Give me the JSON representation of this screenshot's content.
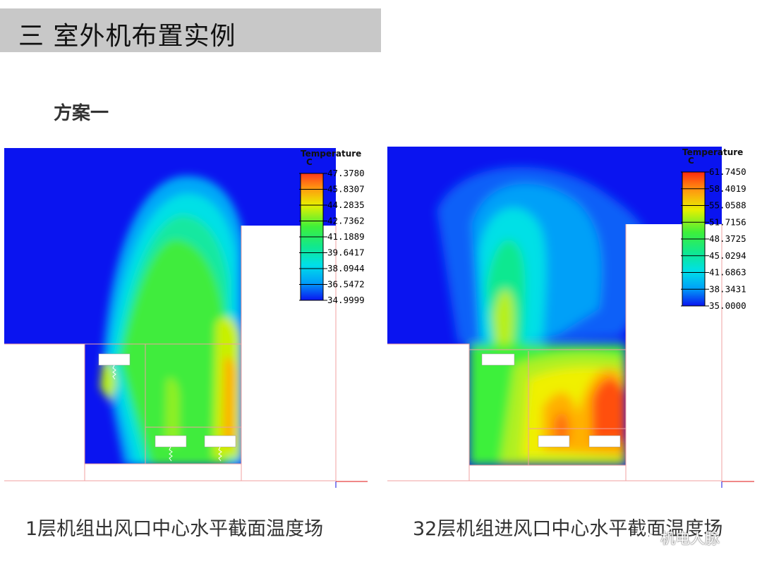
{
  "header": {
    "title": "三  室外机布置实例"
  },
  "scheme_title": "方案一",
  "panels": [
    {
      "legend": {
        "title": "Temperature",
        "unit": "C",
        "values": [
          "47.3780",
          "45.8307",
          "44.2835",
          "42.7362",
          "41.1889",
          "39.6417",
          "38.0944",
          "36.5472",
          "34.9999"
        ]
      },
      "caption": "1层机组出风口中心水平截面温度场"
    },
    {
      "legend": {
        "title": "Temperature",
        "unit": "C",
        "values": [
          "61.7450",
          "58.4019",
          "55.0588",
          "51.7156",
          "48.3725",
          "45.0294",
          "41.6863",
          "38.3431",
          "35.0000"
        ]
      },
      "caption": "32层机组进风口中心水平截面温度场"
    }
  ],
  "watermark": {
    "text": "机电人脉",
    "icon": "wechat-icon"
  },
  "colors": {
    "cold": "#0a14f0",
    "hot": "#ff2800",
    "title_bar": "#c8c8c8"
  }
}
